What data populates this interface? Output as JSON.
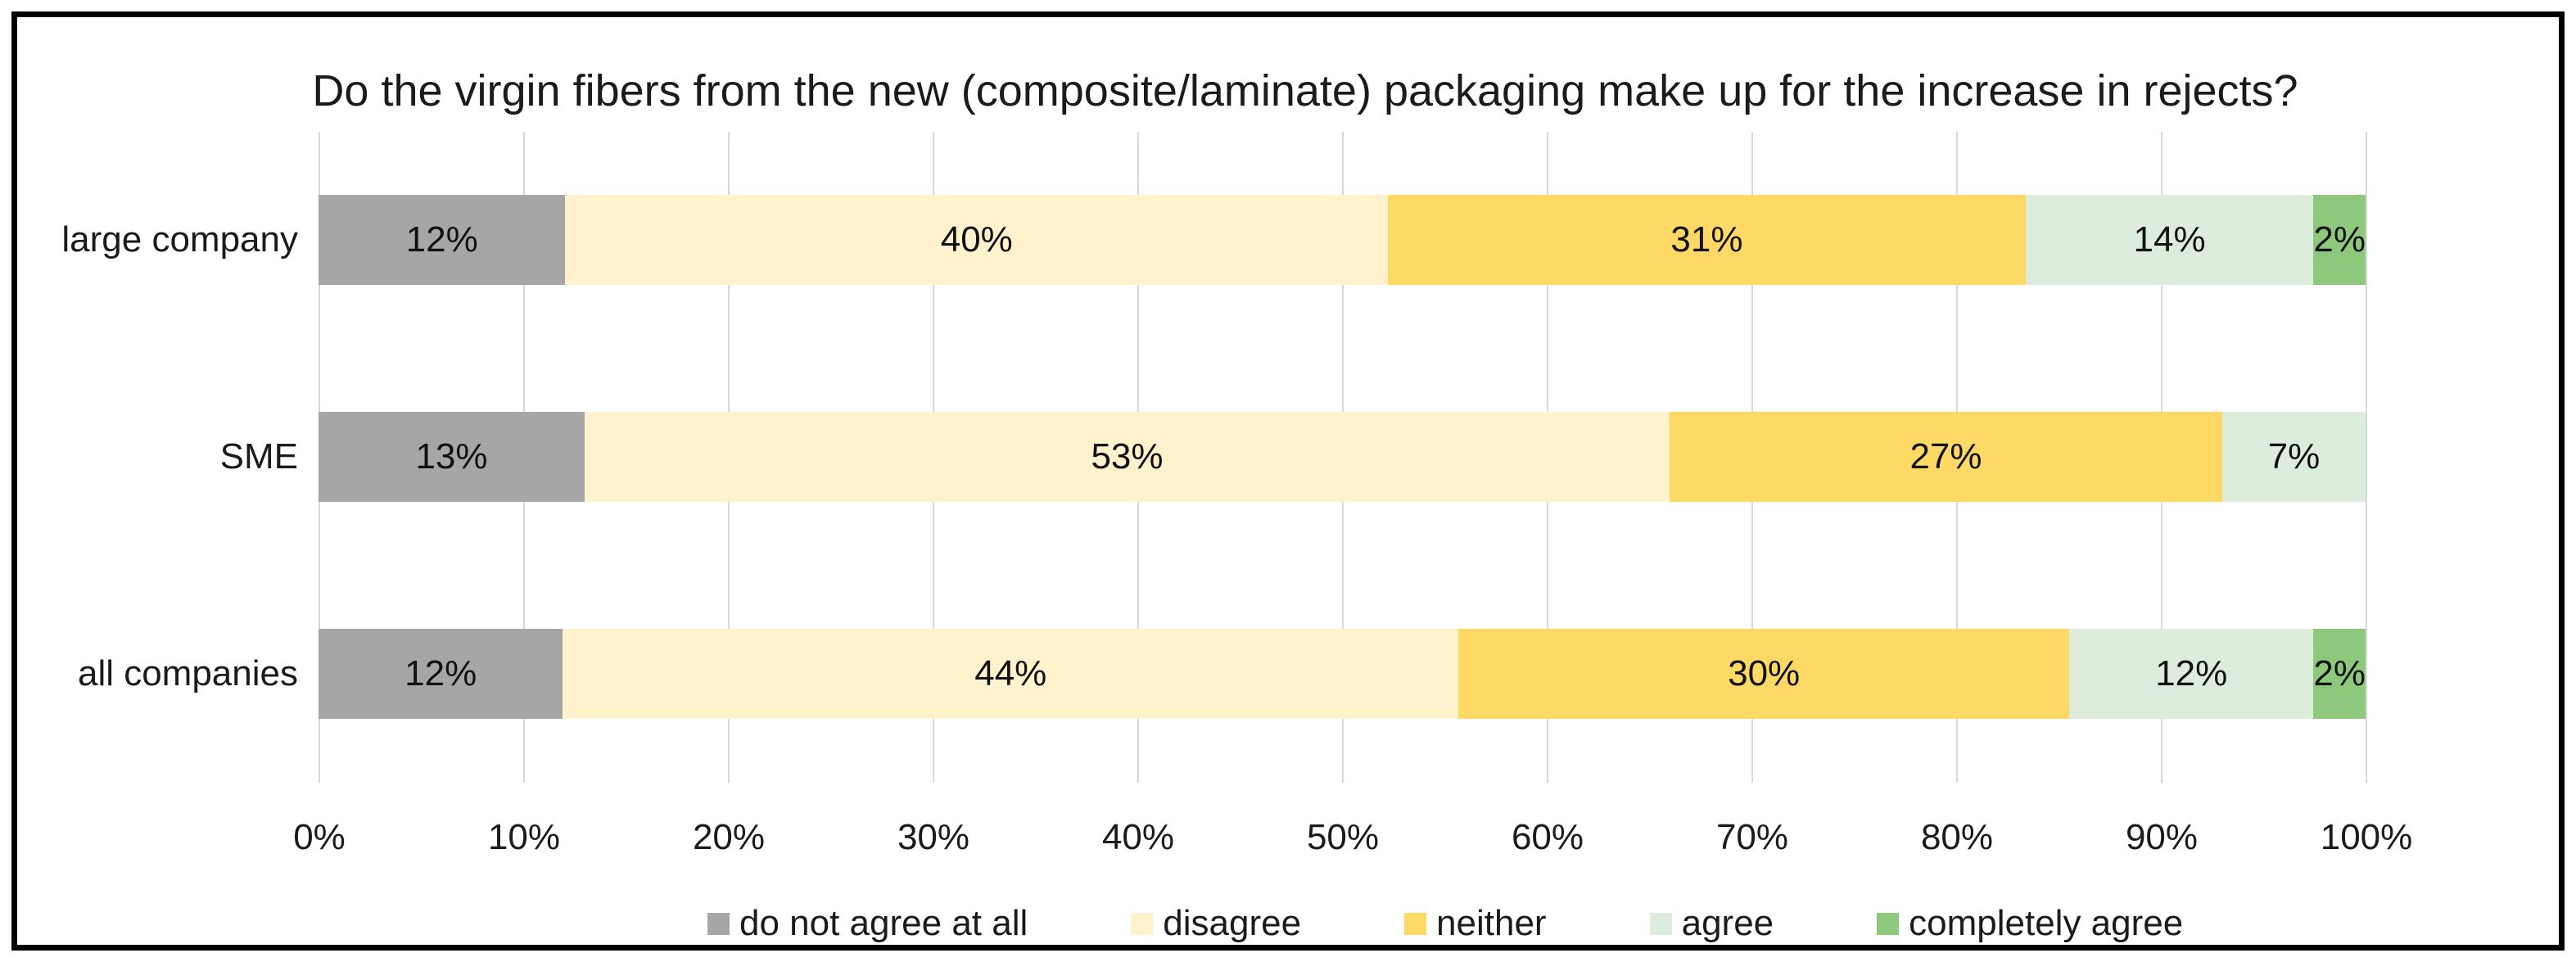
{
  "window": {
    "background": "#ffffff",
    "border_color": "#000000"
  },
  "chart_data": {
    "type": "bar",
    "stacked": true,
    "orientation": "horizontal",
    "title": "Do the virgin fibers from the new (composite/laminate) packaging make up for the increase in rejects?",
    "categories": [
      "large company",
      "SME",
      "all companies"
    ],
    "series": [
      {
        "name": "do not agree at all",
        "color": "#A6A6A6",
        "values": [
          12,
          13,
          12
        ]
      },
      {
        "name": "disagree",
        "color": "#FFF2CC",
        "values": [
          40,
          53,
          44
        ]
      },
      {
        "name": "neither",
        "color": "#FFD966",
        "values": [
          31,
          27,
          30
        ]
      },
      {
        "name": "agree",
        "color": "#DCEEDB",
        "values": [
          14,
          7,
          12
        ]
      },
      {
        "name": "completely agree",
        "color": "#8DC87D",
        "values": [
          2,
          0,
          2
        ]
      }
    ],
    "data_label_suffix": "%",
    "xlabel": "",
    "ylabel": "",
    "x_axis": {
      "min": 0,
      "max": 100,
      "tick_labels": [
        "0%",
        "10%",
        "20%",
        "30%",
        "40%",
        "50%",
        "60%",
        "70%",
        "80%",
        "90%",
        "100%"
      ]
    },
    "grid": "vertical",
    "gridline_color": "#D9D9D9",
    "legend_position": "bottom"
  }
}
